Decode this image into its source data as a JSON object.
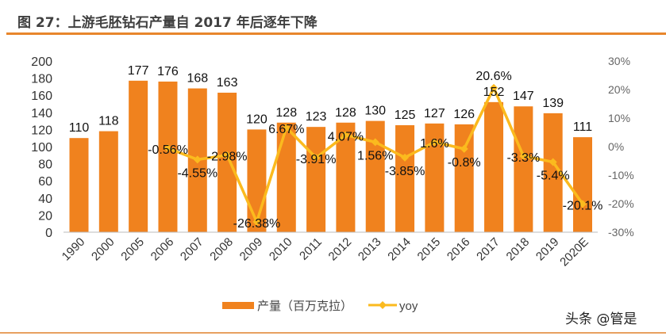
{
  "title": "图 27：上游毛胚钻石产量自 2017 年后逐年下降",
  "watermark": "头条 @管是",
  "colors": {
    "bar": "#F0821E",
    "line": "#FBBA1E",
    "rule": "#E8862C"
  },
  "chart_data": {
    "type": "bar",
    "categories": [
      "1990",
      "2000",
      "2005",
      "2006",
      "2007",
      "2008",
      "2009",
      "2010",
      "2011",
      "2012",
      "2013",
      "2014",
      "2015",
      "2016",
      "2017",
      "2018",
      "2019",
      "2020E"
    ],
    "series": [
      {
        "name": "产量（百万克拉）",
        "type": "bar",
        "axis": "left",
        "values": [
          110,
          118,
          177,
          176,
          168,
          163,
          120,
          128,
          123,
          128,
          130,
          125,
          127,
          126,
          152,
          147,
          139,
          111
        ],
        "labels": [
          "110",
          "118",
          "177",
          "176",
          "168",
          "163",
          "120",
          "128",
          "123",
          "128",
          "130",
          "125",
          "127",
          "126",
          "152",
          "147",
          "139",
          "111"
        ]
      },
      {
        "name": "yoy",
        "type": "line",
        "axis": "right",
        "values": [
          null,
          null,
          null,
          -0.56,
          -4.55,
          -2.98,
          -26.38,
          6.67,
          -3.91,
          4.07,
          1.56,
          -3.85,
          1.6,
          -0.8,
          20.6,
          -3.3,
          -5.4,
          -20.1
        ],
        "labels": [
          null,
          null,
          null,
          "-0.56%",
          "-4.55%",
          "-2.98%",
          "-26.38%",
          "6.67%",
          "-3.91%",
          "4.07%",
          "1.56%",
          "-3.85%",
          "1.6%",
          "-0.8%",
          "20.6%",
          "-3.3%",
          "-5.4%",
          "-20.1%"
        ]
      }
    ],
    "y_left": {
      "range": [
        0,
        200
      ],
      "ticks": [
        "0",
        "20",
        "40",
        "60",
        "80",
        "100",
        "120",
        "140",
        "160",
        "180",
        "200"
      ]
    },
    "y_right": {
      "range": [
        -30,
        30
      ],
      "ticks": [
        "-30%",
        "-20%",
        "-10%",
        "0%",
        "10%",
        "20%",
        "30%"
      ]
    },
    "grid": false,
    "legend": {
      "position": "bottom",
      "entries": [
        "产量（百万克拉）",
        "yoy"
      ]
    }
  }
}
